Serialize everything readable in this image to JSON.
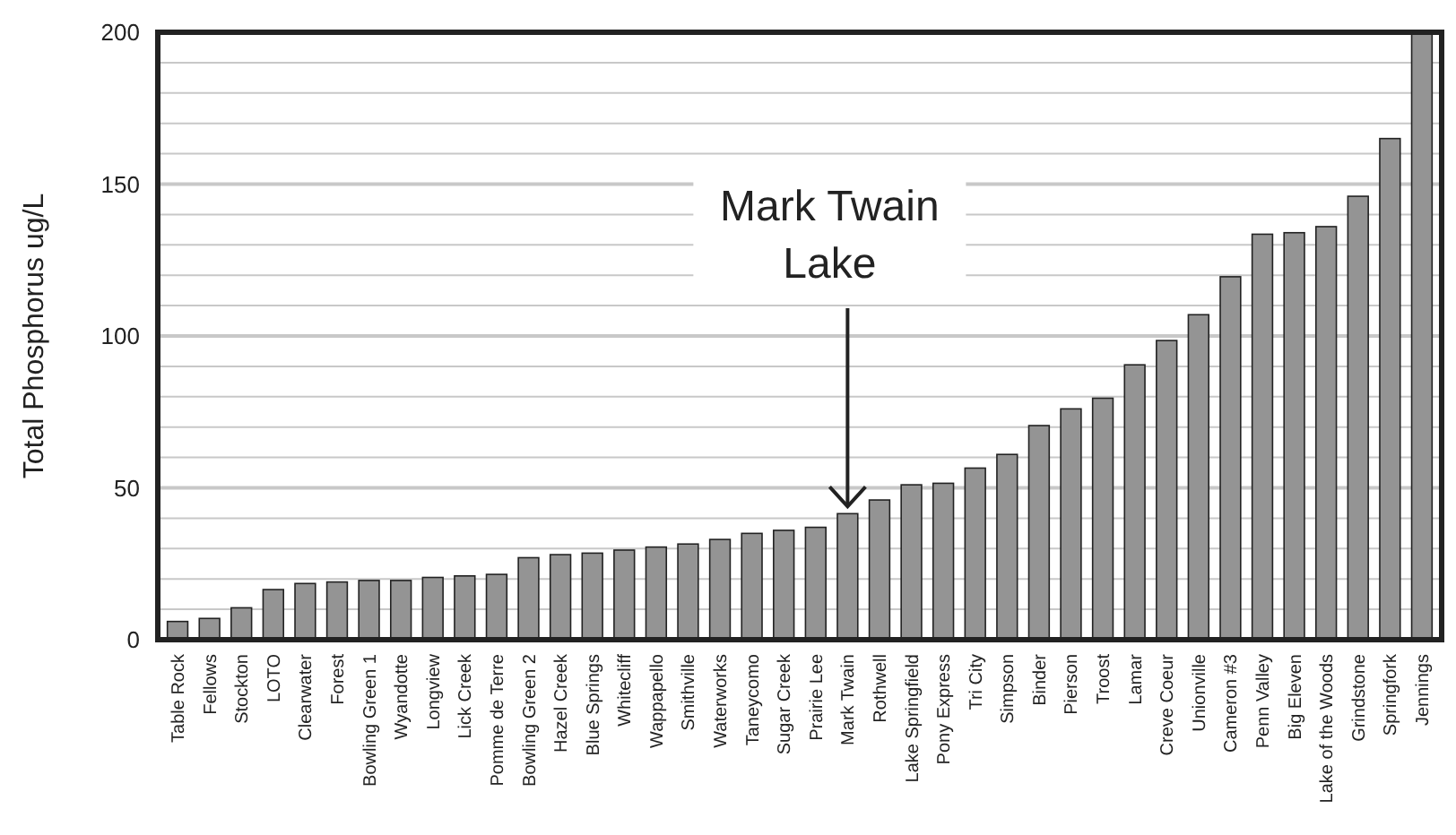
{
  "chart_data": {
    "type": "bar",
    "ylabel": "Total Phosphorus ug/L",
    "categories": [
      "Table Rock",
      "Fellows",
      "Stockton",
      "LOTO",
      "Clearwater",
      "Forest",
      "Bowling Green 1",
      "Wyandotte",
      "Longview",
      "Lick Creek",
      "Pomme de Terre",
      "Bowling Green 2",
      "Hazel Creek",
      "Blue Springs",
      "Whitecliff",
      "Wappapello",
      "Smithville",
      "Waterworks",
      "Taneycomo",
      "Sugar Creek",
      "Prairie Lee",
      "Mark Twain",
      "Rothwell",
      "Lake Springfield",
      "Pony Express",
      "Tri City",
      "Simpson",
      "Binder",
      "Pierson",
      "Troost",
      "Lamar",
      "Creve Coeur",
      "Unionville",
      "Cameron #3",
      "Penn Valley",
      "Big Eleven",
      "Lake of the Woods",
      "Grindstone",
      "Springfork",
      "Jennings"
    ],
    "values": [
      6,
      7,
      10.5,
      16.5,
      18.5,
      19,
      19.5,
      19.5,
      20.5,
      21,
      21.5,
      27,
      28,
      28.5,
      29.5,
      30.5,
      31.5,
      33,
      35,
      36,
      37,
      41.5,
      46,
      51,
      51.5,
      56.5,
      61,
      70.5,
      76,
      79.5,
      90.5,
      98.5,
      107,
      119.5,
      133.5,
      134,
      136,
      146,
      165,
      200
    ],
    "color": "#949494",
    "ylim": [
      0,
      200
    ],
    "yticks": [
      0,
      {
        "value": 10,
        "label": null
      },
      {
        "value": 20,
        "label": null
      },
      {
        "value": 30,
        "label": null
      },
      {
        "value": 40,
        "label": null
      },
      50,
      {
        "value": 60,
        "label": null
      },
      {
        "value": 70,
        "label": null
      },
      {
        "value": 80,
        "label": null
      },
      {
        "value": 90,
        "label": null
      },
      100,
      {
        "value": 110,
        "label": null
      },
      {
        "value": 120,
        "label": null
      },
      {
        "value": 130,
        "label": null
      },
      {
        "value": 140,
        "label": null
      },
      150,
      {
        "value": 160,
        "label": null
      },
      {
        "value": 170,
        "label": null
      },
      {
        "value": 180,
        "label": null
      },
      {
        "value": 190,
        "label": null
      },
      200
    ],
    "grid": true,
    "annotations": [
      {
        "text": "Mark Twain Lake",
        "x": "Mark Twain",
        "y": 41.5
      }
    ]
  }
}
